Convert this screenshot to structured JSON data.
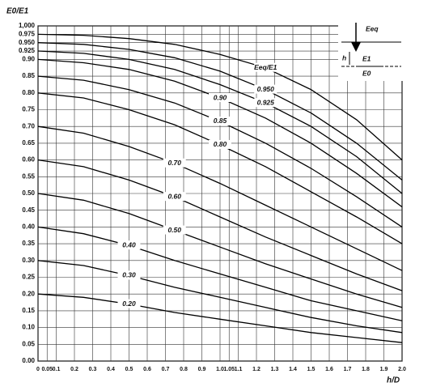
{
  "chart_data": {
    "type": "line",
    "y_label": "E0/E1",
    "x_label": "h/D",
    "xlim": [
      0,
      2.0
    ],
    "ylim": [
      0,
      1.0
    ],
    "grid": true,
    "xticks": [
      0,
      0.05,
      0.1,
      0.2,
      0.3,
      0.4,
      0.5,
      0.6,
      0.7,
      0.8,
      0.9,
      {
        "value": 1,
        "label": "1.0"
      },
      1.05,
      1.1,
      1.2,
      1.3,
      1.4,
      1.5,
      1.6,
      1.7,
      1.8,
      1.9,
      {
        "value": 2,
        "label": "2.0"
      }
    ],
    "yticks": [
      {
        "value": 0,
        "label": "0.00"
      },
      0.05,
      {
        "value": 0.1,
        "label": "0.10"
      },
      0.15,
      {
        "value": 0.2,
        "label": "0.20"
      },
      0.25,
      {
        "value": 0.3,
        "label": "0.30"
      },
      0.35,
      {
        "value": 0.4,
        "label": "0.40"
      },
      0.45,
      {
        "value": 0.5,
        "label": "0.50"
      },
      0.55,
      {
        "value": 0.6,
        "label": "0.60"
      },
      0.65,
      {
        "value": 0.7,
        "label": "0.70"
      },
      0.75,
      {
        "value": 0.8,
        "label": "0.80"
      },
      0.85,
      {
        "value": 0.9,
        "label": "0.90"
      },
      0.925,
      {
        "value": 0.95,
        "label": "0.950"
      },
      0.975,
      {
        "value": 1,
        "label": "1,000"
      }
    ],
    "x": [
      0,
      0.25,
      0.5,
      0.75,
      1.0,
      1.25,
      1.5,
      1.75,
      2.0
    ],
    "series": [
      {
        "name": "Eeq/E1",
        "color": "#000",
        "values": [
          0.975,
          0.972,
          0.962,
          0.945,
          0.915,
          0.875,
          0.81,
          0.72,
          0.6
        ]
      },
      {
        "name": "0.950",
        "color": "#000",
        "values": [
          0.95,
          0.945,
          0.93,
          0.905,
          0.865,
          0.81,
          0.74,
          0.65,
          0.54
        ]
      },
      {
        "name": "0.925",
        "color": "#000",
        "values": [
          0.925,
          0.918,
          0.9,
          0.87,
          0.825,
          0.77,
          0.7,
          0.61,
          0.5
        ]
      },
      {
        "name": "0.90",
        "color": "#000",
        "values": [
          0.9,
          0.89,
          0.87,
          0.835,
          0.785,
          0.725,
          0.65,
          0.56,
          0.46
        ]
      },
      {
        "name": "0.85",
        "color": "#000",
        "values": [
          0.85,
          0.838,
          0.81,
          0.77,
          0.715,
          0.65,
          0.575,
          0.49,
          0.4
        ]
      },
      {
        "name": "0.80",
        "color": "#000",
        "values": [
          0.8,
          0.785,
          0.75,
          0.705,
          0.645,
          0.58,
          0.505,
          0.43,
          0.35
        ]
      },
      {
        "name": "0.70",
        "color": "#000",
        "values": [
          0.7,
          0.68,
          0.64,
          0.59,
          0.53,
          0.465,
          0.4,
          0.335,
          0.27
        ]
      },
      {
        "name": "0.60",
        "color": "#000",
        "values": [
          0.6,
          0.58,
          0.54,
          0.49,
          0.43,
          0.37,
          0.315,
          0.26,
          0.21
        ]
      },
      {
        "name": "0.50",
        "color": "#000",
        "values": [
          0.5,
          0.48,
          0.44,
          0.39,
          0.34,
          0.29,
          0.245,
          0.2,
          0.16
        ]
      },
      {
        "name": "0.40",
        "color": "#000",
        "values": [
          0.4,
          0.38,
          0.345,
          0.3,
          0.26,
          0.22,
          0.18,
          0.15,
          0.12
        ]
      },
      {
        "name": "0.30",
        "color": "#000",
        "values": [
          0.3,
          0.285,
          0.255,
          0.22,
          0.19,
          0.16,
          0.13,
          0.105,
          0.085
        ]
      },
      {
        "name": "0.20",
        "color": "#000",
        "values": [
          0.2,
          0.19,
          0.17,
          0.145,
          0.125,
          0.105,
          0.085,
          0.07,
          0.055
        ]
      }
    ],
    "inset_labels": [
      "Eeq",
      "E1",
      "E0",
      "h"
    ]
  }
}
